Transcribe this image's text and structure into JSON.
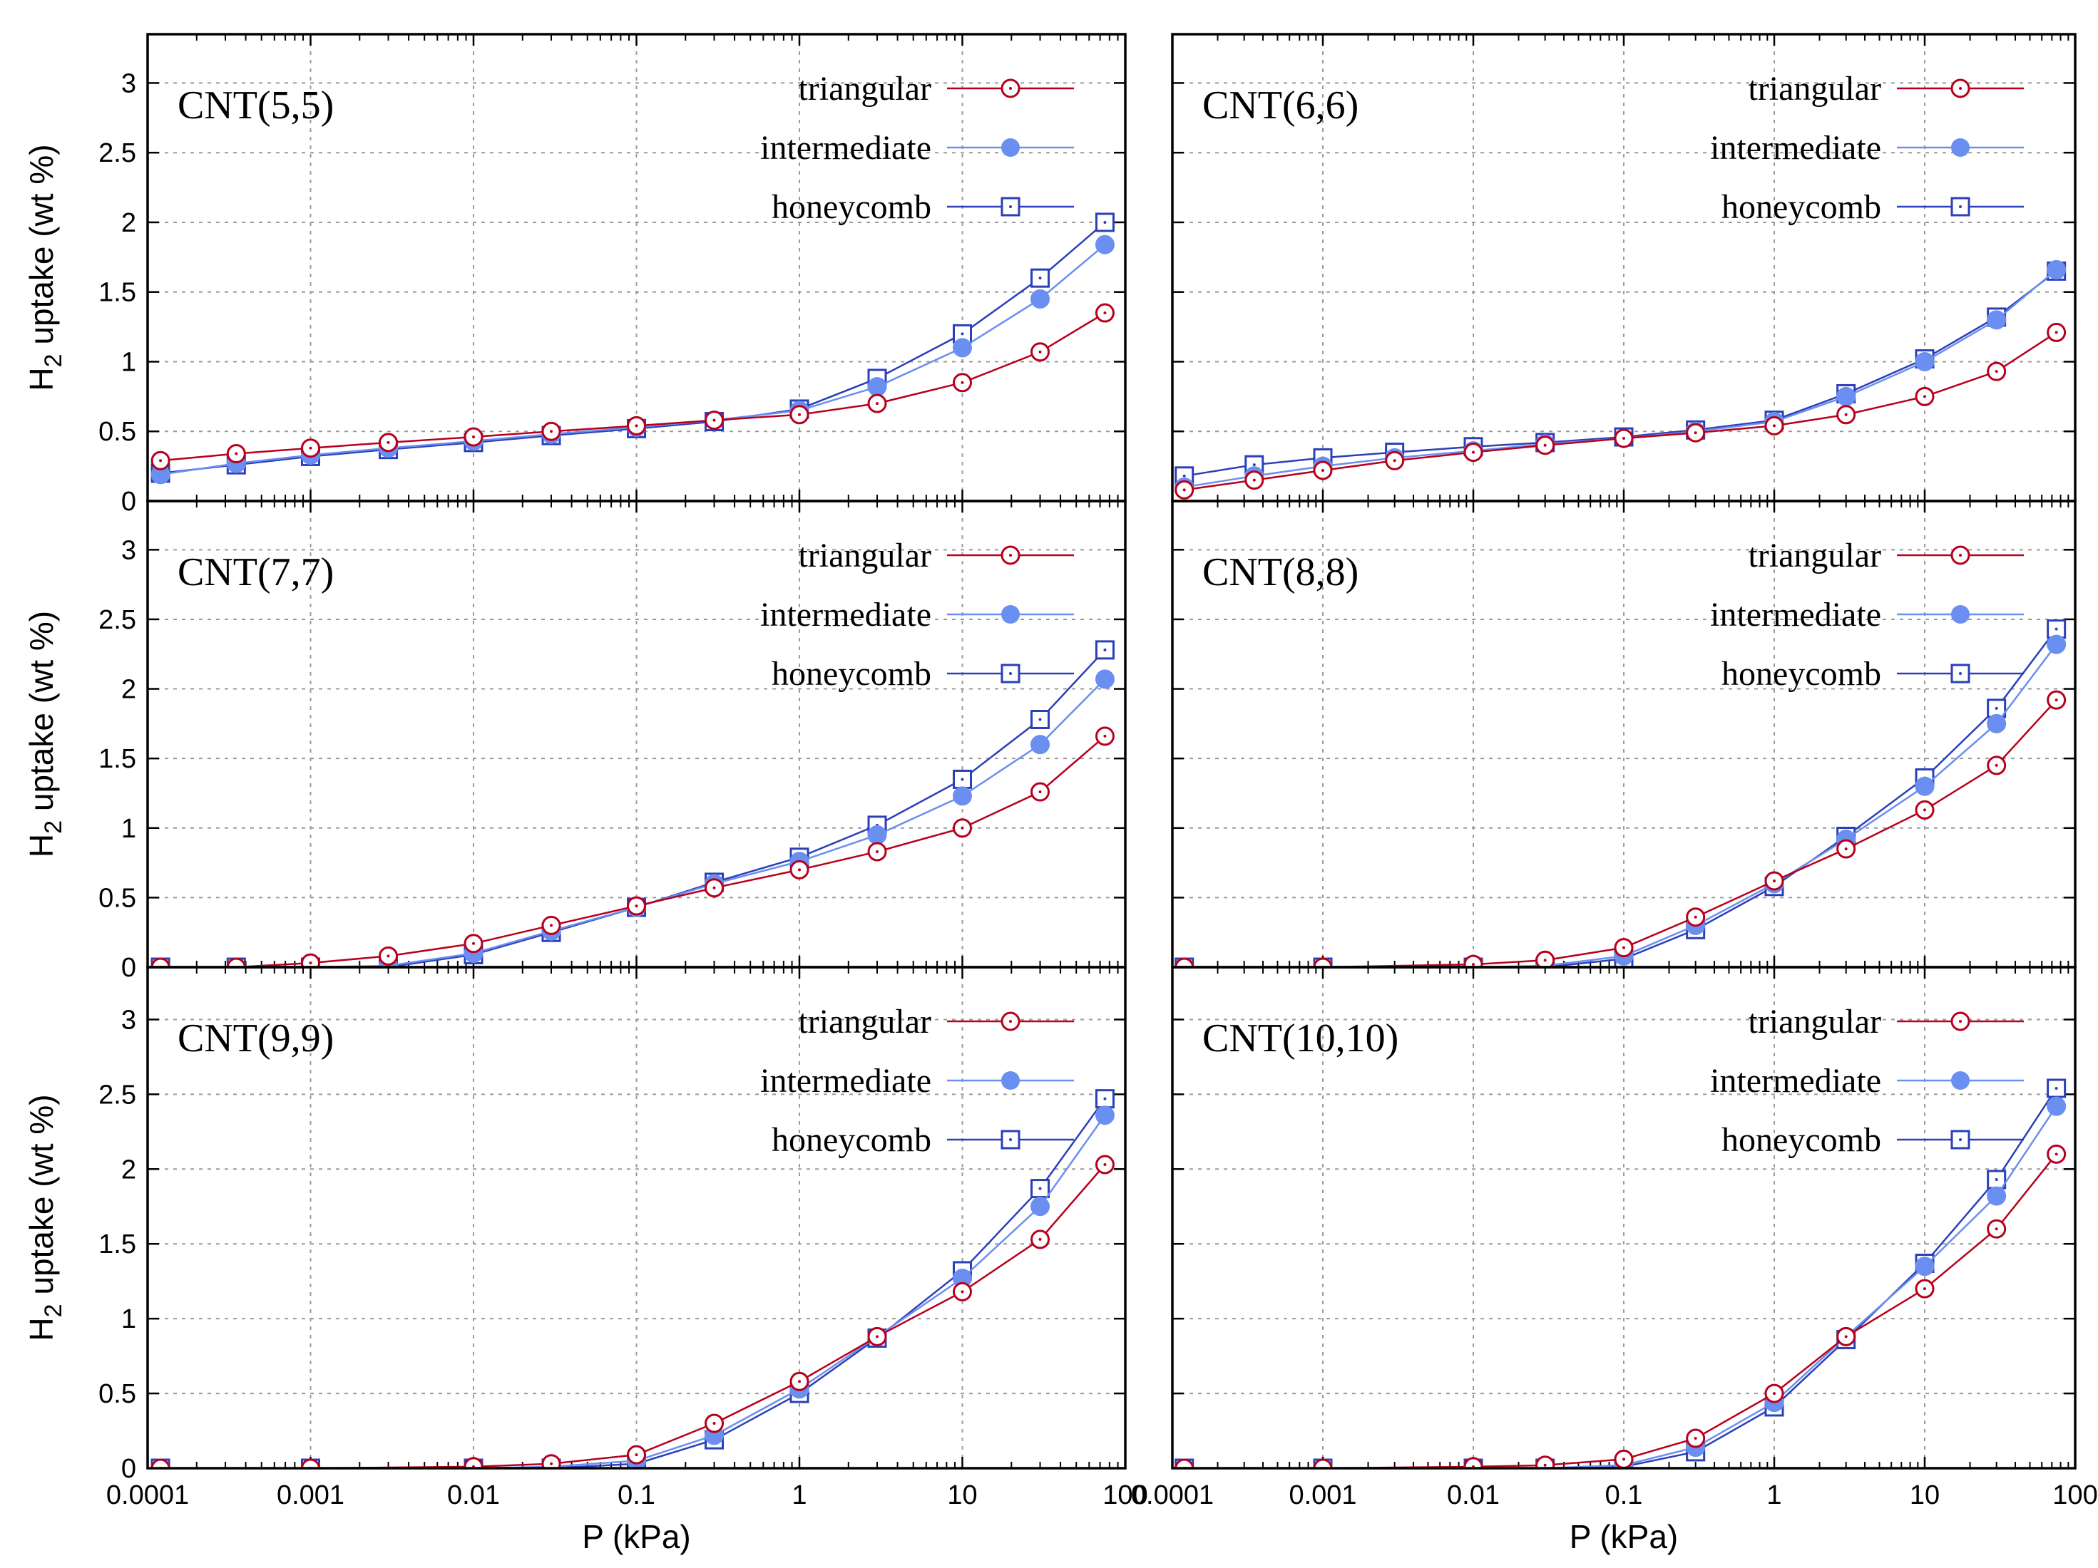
{
  "colors": {
    "triangular": "#b8001c",
    "intermediate": "#6b8ff0",
    "honeycomb": "#2b3fb8"
  },
  "shared": {
    "x_tick_labels": [
      "0.0001",
      "0.001",
      "0.01",
      "0.1",
      "1",
      "10",
      "100"
    ],
    "y_tick_labels": [
      "0",
      "0.5",
      "1",
      "1.5",
      "2",
      "2.5",
      "3"
    ],
    "xlabel": "P (kPa)",
    "ylabel_prefix": "H",
    "ylabel_sub": "2",
    "ylabel_suffix": " uptake (wt %)",
    "legend": [
      "triangular",
      "intermediate",
      "honeycomb"
    ]
  },
  "chart_data": [
    {
      "type": "line",
      "title": "CNT(5,5)",
      "xscale": "log",
      "xlim": [
        0.0001,
        100
      ],
      "ylim": [
        0,
        3.35
      ],
      "grid": true,
      "legend_position": "top-right",
      "series": [
        {
          "name": "triangular",
          "marker": "open-circle",
          "points": [
            [
              0.00012,
              0.29
            ],
            [
              0.00035,
              0.34
            ],
            [
              0.001,
              0.38
            ],
            [
              0.003,
              0.42
            ],
            [
              0.01,
              0.46
            ],
            [
              0.03,
              0.5
            ],
            [
              0.1,
              0.54
            ],
            [
              0.3,
              0.58
            ],
            [
              1,
              0.62
            ],
            [
              3,
              0.7
            ],
            [
              10,
              0.85
            ],
            [
              30,
              1.07
            ],
            [
              75,
              1.35
            ]
          ]
        },
        {
          "name": "intermediate",
          "marker": "filled-circle",
          "points": [
            [
              0.00012,
              0.19
            ],
            [
              0.00035,
              0.27
            ],
            [
              0.001,
              0.33
            ],
            [
              0.003,
              0.38
            ],
            [
              0.01,
              0.43
            ],
            [
              0.03,
              0.48
            ],
            [
              0.1,
              0.53
            ],
            [
              0.3,
              0.58
            ],
            [
              1,
              0.65
            ],
            [
              3,
              0.82
            ],
            [
              10,
              1.1
            ],
            [
              30,
              1.45
            ],
            [
              75,
              1.84
            ]
          ]
        },
        {
          "name": "honeycomb",
          "marker": "open-square",
          "points": [
            [
              0.00012,
              0.2
            ],
            [
              0.00035,
              0.26
            ],
            [
              0.001,
              0.32
            ],
            [
              0.003,
              0.37
            ],
            [
              0.01,
              0.42
            ],
            [
              0.03,
              0.47
            ],
            [
              0.1,
              0.52
            ],
            [
              0.3,
              0.57
            ],
            [
              1,
              0.66
            ],
            [
              3,
              0.88
            ],
            [
              10,
              1.2
            ],
            [
              30,
              1.6
            ],
            [
              75,
              2.0
            ]
          ]
        }
      ]
    },
    {
      "type": "line",
      "title": "CNT(6,6)",
      "xscale": "log",
      "xlim": [
        0.0001,
        100
      ],
      "ylim": [
        0,
        3.35
      ],
      "grid": true,
      "legend_position": "top-right",
      "series": [
        {
          "name": "triangular",
          "marker": "open-circle",
          "points": [
            [
              0.00012,
              0.08
            ],
            [
              0.00035,
              0.15
            ],
            [
              0.001,
              0.22
            ],
            [
              0.003,
              0.29
            ],
            [
              0.01,
              0.35
            ],
            [
              0.03,
              0.4
            ],
            [
              0.1,
              0.45
            ],
            [
              0.3,
              0.49
            ],
            [
              1,
              0.54
            ],
            [
              3,
              0.62
            ],
            [
              10,
              0.75
            ],
            [
              30,
              0.93
            ],
            [
              75,
              1.21
            ]
          ]
        },
        {
          "name": "intermediate",
          "marker": "filled-circle",
          "points": [
            [
              0.00012,
              0.1
            ],
            [
              0.00035,
              0.18
            ],
            [
              0.001,
              0.25
            ],
            [
              0.003,
              0.31
            ],
            [
              0.01,
              0.36
            ],
            [
              0.03,
              0.41
            ],
            [
              0.1,
              0.45
            ],
            [
              0.3,
              0.5
            ],
            [
              1,
              0.57
            ],
            [
              3,
              0.75
            ],
            [
              10,
              1.0
            ],
            [
              30,
              1.3
            ],
            [
              75,
              1.66
            ]
          ]
        },
        {
          "name": "honeycomb",
          "marker": "open-square",
          "points": [
            [
              0.00012,
              0.18
            ],
            [
              0.00035,
              0.26
            ],
            [
              0.001,
              0.31
            ],
            [
              0.003,
              0.35
            ],
            [
              0.01,
              0.39
            ],
            [
              0.03,
              0.42
            ],
            [
              0.1,
              0.46
            ],
            [
              0.3,
              0.51
            ],
            [
              1,
              0.58
            ],
            [
              3,
              0.77
            ],
            [
              10,
              1.02
            ],
            [
              30,
              1.32
            ],
            [
              75,
              1.65
            ]
          ]
        }
      ]
    },
    {
      "type": "line",
      "title": "CNT(7,7)",
      "xscale": "log",
      "xlim": [
        0.0001,
        100
      ],
      "ylim": [
        0,
        3.35
      ],
      "grid": true,
      "legend_position": "top-right",
      "series": [
        {
          "name": "triangular",
          "marker": "open-circle",
          "points": [
            [
              0.00012,
              0.0
            ],
            [
              0.00035,
              0.0
            ],
            [
              0.001,
              0.03
            ],
            [
              0.003,
              0.08
            ],
            [
              0.01,
              0.17
            ],
            [
              0.03,
              0.3
            ],
            [
              0.1,
              0.44
            ],
            [
              0.3,
              0.57
            ],
            [
              1,
              0.7
            ],
            [
              3,
              0.83
            ],
            [
              10,
              1.0
            ],
            [
              30,
              1.26
            ],
            [
              75,
              1.66
            ]
          ]
        },
        {
          "name": "intermediate",
          "marker": "filled-circle",
          "points": [
            [
              0.00012,
              0.0
            ],
            [
              0.00035,
              0.0
            ],
            [
              0.001,
              0.0
            ],
            [
              0.003,
              0.01
            ],
            [
              0.01,
              0.1
            ],
            [
              0.03,
              0.26
            ],
            [
              0.1,
              0.43
            ],
            [
              0.3,
              0.6
            ],
            [
              1,
              0.76
            ],
            [
              3,
              0.95
            ],
            [
              10,
              1.23
            ],
            [
              30,
              1.6
            ],
            [
              75,
              2.07
            ]
          ]
        },
        {
          "name": "honeycomb",
          "marker": "open-square",
          "points": [
            [
              0.00012,
              0.0
            ],
            [
              0.00035,
              0.0
            ],
            [
              0.001,
              0.0
            ],
            [
              0.003,
              0.0
            ],
            [
              0.01,
              0.09
            ],
            [
              0.03,
              0.25
            ],
            [
              0.1,
              0.43
            ],
            [
              0.3,
              0.61
            ],
            [
              1,
              0.79
            ],
            [
              3,
              1.02
            ],
            [
              10,
              1.35
            ],
            [
              30,
              1.78
            ],
            [
              75,
              2.28
            ]
          ]
        }
      ]
    },
    {
      "type": "line",
      "title": "CNT(8,8)",
      "xscale": "log",
      "xlim": [
        0.0001,
        100
      ],
      "ylim": [
        0,
        3.35
      ],
      "grid": true,
      "legend_position": "top-right",
      "series": [
        {
          "name": "triangular",
          "marker": "open-circle",
          "points": [
            [
              0.00012,
              0.0
            ],
            [
              0.001,
              0.0
            ],
            [
              0.01,
              0.02
            ],
            [
              0.03,
              0.05
            ],
            [
              0.1,
              0.14
            ],
            [
              0.3,
              0.36
            ],
            [
              1,
              0.62
            ],
            [
              3,
              0.85
            ],
            [
              10,
              1.13
            ],
            [
              30,
              1.45
            ],
            [
              75,
              1.92
            ]
          ]
        },
        {
          "name": "intermediate",
          "marker": "filled-circle",
          "points": [
            [
              0.00012,
              0.0
            ],
            [
              0.001,
              0.0
            ],
            [
              0.01,
              0.0
            ],
            [
              0.03,
              0.01
            ],
            [
              0.1,
              0.08
            ],
            [
              0.3,
              0.3
            ],
            [
              1,
              0.6
            ],
            [
              3,
              0.92
            ],
            [
              10,
              1.3
            ],
            [
              30,
              1.75
            ],
            [
              75,
              2.32
            ]
          ]
        },
        {
          "name": "honeycomb",
          "marker": "open-square",
          "points": [
            [
              0.00012,
              0.0
            ],
            [
              0.001,
              0.0
            ],
            [
              0.01,
              0.0
            ],
            [
              0.03,
              0.0
            ],
            [
              0.1,
              0.06
            ],
            [
              0.3,
              0.27
            ],
            [
              1,
              0.58
            ],
            [
              3,
              0.94
            ],
            [
              10,
              1.36
            ],
            [
              30,
              1.86
            ],
            [
              75,
              2.43
            ]
          ]
        }
      ]
    },
    {
      "type": "line",
      "title": "CNT(9,9)",
      "xscale": "log",
      "xlim": [
        0.0001,
        100
      ],
      "ylim": [
        0,
        3.35
      ],
      "grid": true,
      "legend_position": "top-right",
      "series": [
        {
          "name": "triangular",
          "marker": "open-circle",
          "points": [
            [
              0.00012,
              0.0
            ],
            [
              0.001,
              0.0
            ],
            [
              0.01,
              0.01
            ],
            [
              0.03,
              0.03
            ],
            [
              0.1,
              0.09
            ],
            [
              0.3,
              0.3
            ],
            [
              1,
              0.58
            ],
            [
              3,
              0.88
            ],
            [
              10,
              1.18
            ],
            [
              30,
              1.53
            ],
            [
              75,
              2.03
            ]
          ]
        },
        {
          "name": "intermediate",
          "marker": "filled-circle",
          "points": [
            [
              0.00012,
              0.0
            ],
            [
              0.001,
              0.0
            ],
            [
              0.01,
              0.0
            ],
            [
              0.03,
              0.01
            ],
            [
              0.1,
              0.05
            ],
            [
              0.3,
              0.22
            ],
            [
              1,
              0.53
            ],
            [
              3,
              0.88
            ],
            [
              10,
              1.27
            ],
            [
              30,
              1.75
            ],
            [
              75,
              2.36
            ]
          ]
        },
        {
          "name": "honeycomb",
          "marker": "open-square",
          "points": [
            [
              0.00012,
              0.0
            ],
            [
              0.001,
              0.0
            ],
            [
              0.01,
              0.0
            ],
            [
              0.03,
              0.0
            ],
            [
              0.1,
              0.03
            ],
            [
              0.3,
              0.19
            ],
            [
              1,
              0.5
            ],
            [
              3,
              0.87
            ],
            [
              10,
              1.32
            ],
            [
              30,
              1.87
            ],
            [
              75,
              2.47
            ]
          ]
        }
      ]
    },
    {
      "type": "line",
      "title": "CNT(10,10)",
      "xscale": "log",
      "xlim": [
        0.0001,
        100
      ],
      "ylim": [
        0,
        3.35
      ],
      "grid": true,
      "legend_position": "top-right",
      "series": [
        {
          "name": "triangular",
          "marker": "open-circle",
          "points": [
            [
              0.00012,
              0.0
            ],
            [
              0.001,
              0.0
            ],
            [
              0.01,
              0.01
            ],
            [
              0.03,
              0.02
            ],
            [
              0.1,
              0.06
            ],
            [
              0.3,
              0.2
            ],
            [
              1,
              0.5
            ],
            [
              3,
              0.88
            ],
            [
              10,
              1.2
            ],
            [
              30,
              1.6
            ],
            [
              75,
              2.1
            ]
          ]
        },
        {
          "name": "intermediate",
          "marker": "filled-circle",
          "points": [
            [
              0.00012,
              0.0
            ],
            [
              0.001,
              0.0
            ],
            [
              0.01,
              0.0
            ],
            [
              0.03,
              0.0
            ],
            [
              0.1,
              0.02
            ],
            [
              0.3,
              0.14
            ],
            [
              1,
              0.44
            ],
            [
              3,
              0.88
            ],
            [
              10,
              1.35
            ],
            [
              30,
              1.82
            ],
            [
              75,
              2.42
            ]
          ]
        },
        {
          "name": "honeycomb",
          "marker": "open-square",
          "points": [
            [
              0.00012,
              0.0
            ],
            [
              0.001,
              0.0
            ],
            [
              0.01,
              0.0
            ],
            [
              0.03,
              0.0
            ],
            [
              0.1,
              0.01
            ],
            [
              0.3,
              0.11
            ],
            [
              1,
              0.41
            ],
            [
              3,
              0.86
            ],
            [
              10,
              1.37
            ],
            [
              30,
              1.93
            ],
            [
              75,
              2.54
            ]
          ]
        }
      ]
    }
  ]
}
